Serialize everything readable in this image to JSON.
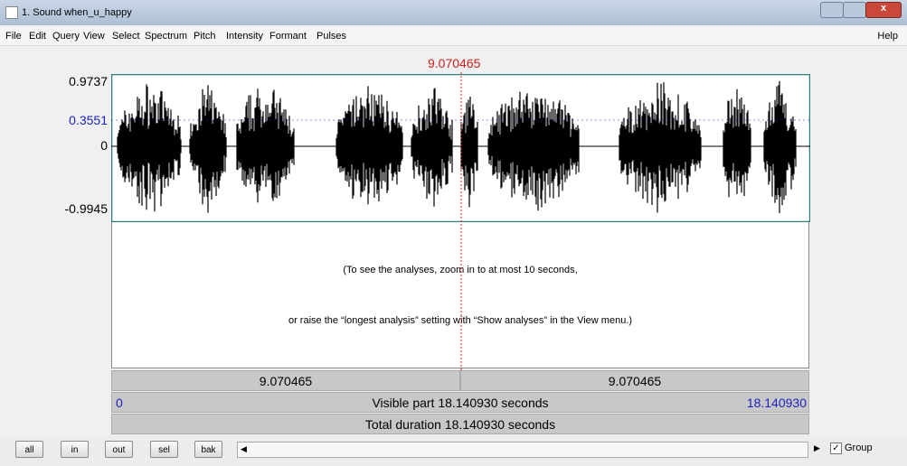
{
  "window": {
    "title": "1. Sound when_u_happy"
  },
  "menu": {
    "items": [
      "File",
      "Edit",
      "Query",
      "View",
      "Select",
      "Spectrum",
      "Pitch",
      "Intensity",
      "Formant",
      "Pulses"
    ],
    "help": "Help"
  },
  "cursor": {
    "time": "9.070465"
  },
  "waveform": {
    "y_labels": {
      "max": "0.9737",
      "cursor_value": "0.3551",
      "zero": "0",
      "min": "-0.9945"
    }
  },
  "message": {
    "lines": [
      "(To see the analyses, zoom in to at most 10 seconds,",
      "or raise the “longest analysis” setting with “Show analyses” in the View menu.)"
    ]
  },
  "time_bars": {
    "left": "9.070465",
    "right": "9.070465",
    "visible_start": "0",
    "visible_label": "Visible part 18.140930 seconds",
    "visible_end": "18.140930",
    "total": "Total duration 18.140930 seconds"
  },
  "buttons": [
    "all",
    "in",
    "out",
    "sel",
    "bak"
  ],
  "group": "Group"
}
